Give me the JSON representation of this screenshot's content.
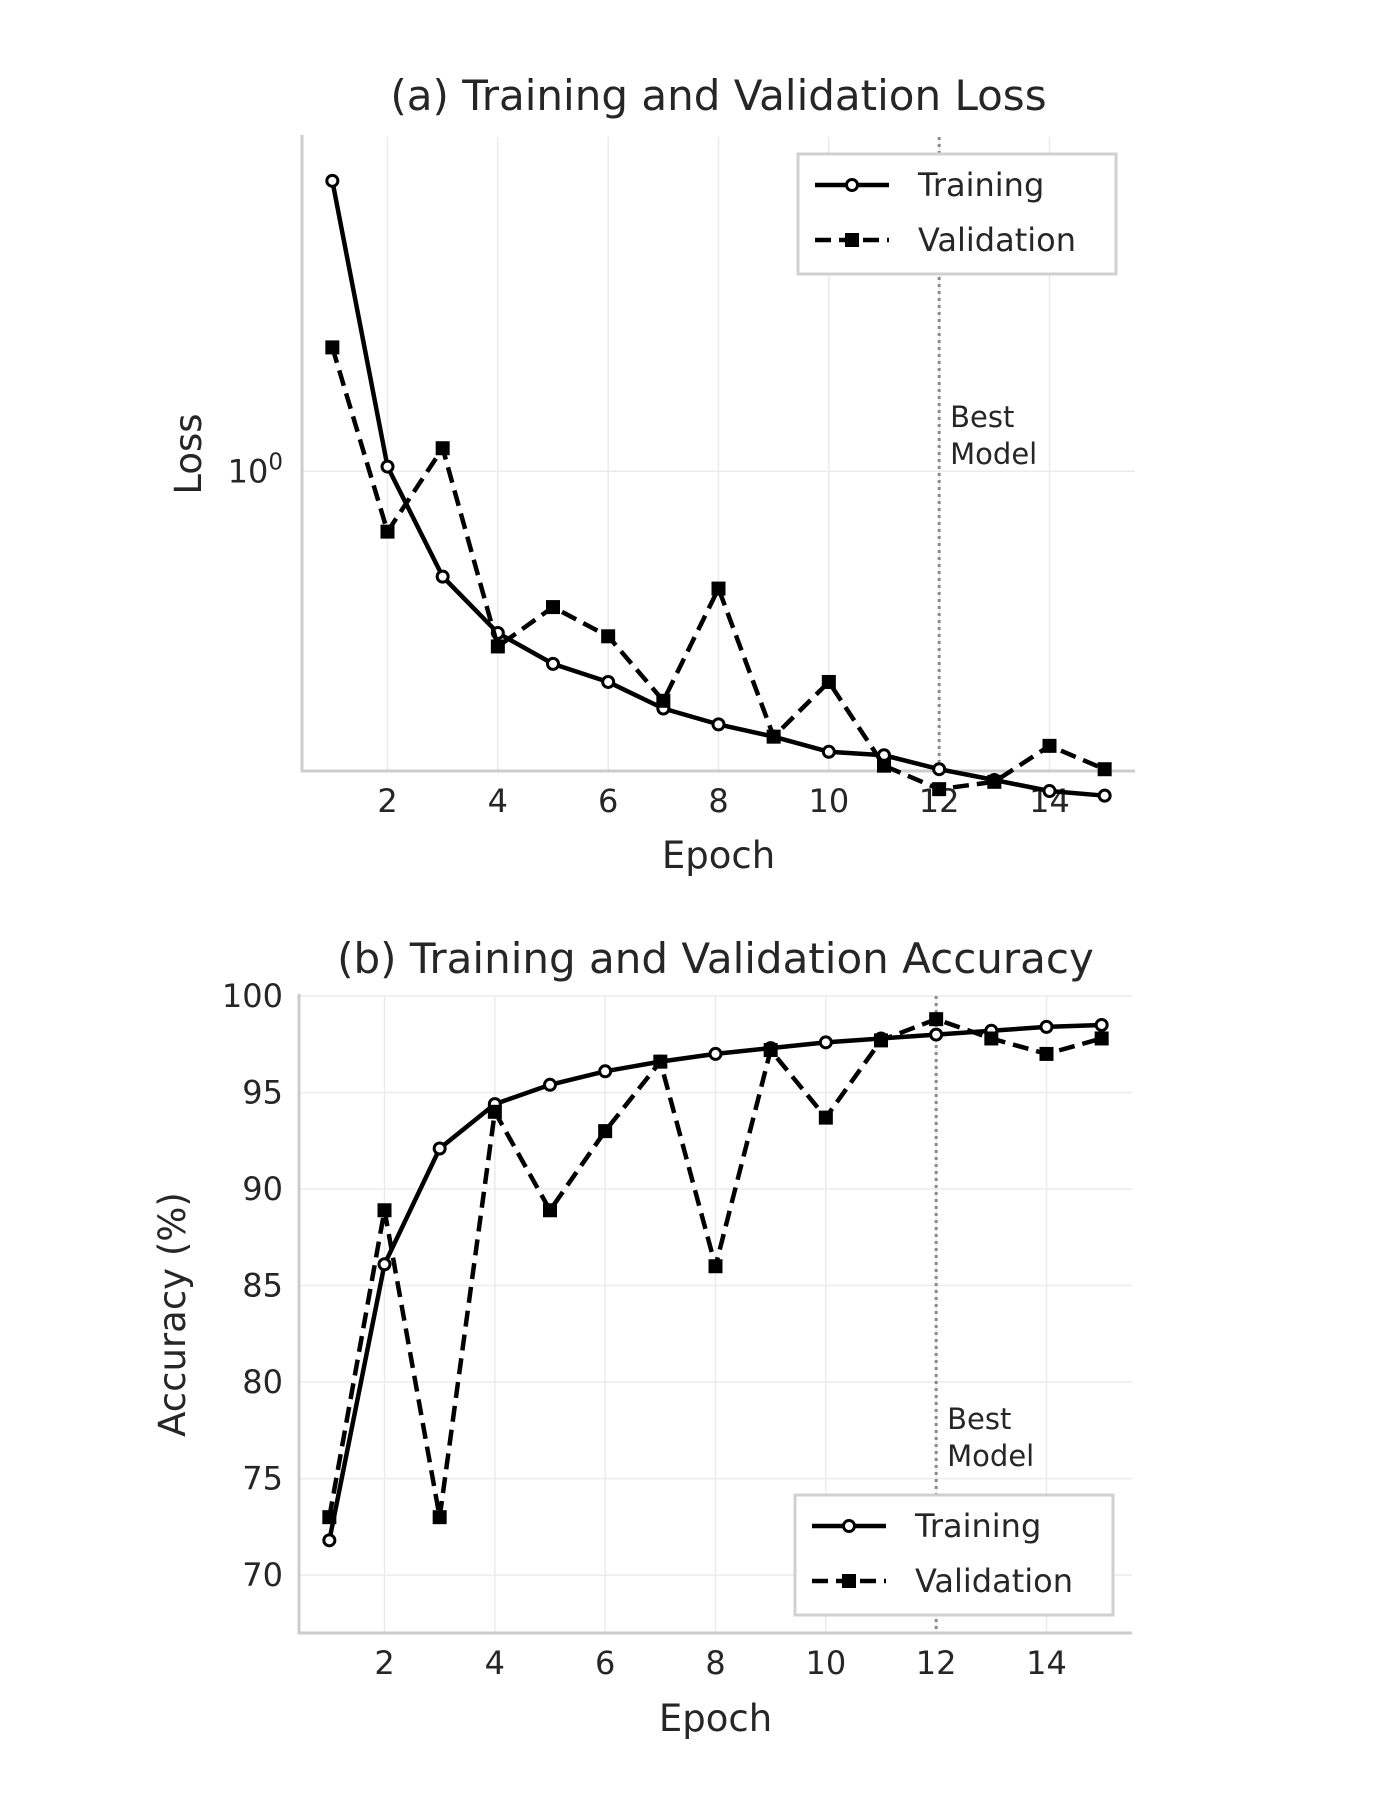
{
  "chart_data": [
    {
      "type": "line",
      "title": "(a) Training and Validation Loss",
      "xlabel": "Epoch",
      "ylabel": "Loss",
      "yscale": "log",
      "xlim": [
        0.45,
        15.55
      ],
      "ylim": [
        0.53,
        2.03
      ],
      "x": [
        1,
        2,
        3,
        4,
        5,
        6,
        7,
        8,
        9,
        10,
        11,
        12,
        13,
        14,
        15
      ],
      "x_ticks": [
        2,
        4,
        6,
        8,
        10,
        12,
        14
      ],
      "y_ticks": [
        {
          "value": 1.0,
          "label": "10",
          "exp": "0"
        }
      ],
      "grid": true,
      "legend_position": "upper right",
      "series": [
        {
          "name": "Training",
          "marker": "circle-open",
          "linestyle": "solid",
          "values": [
            1.85,
            1.01,
            0.8,
            0.71,
            0.665,
            0.64,
            0.605,
            0.585,
            0.57,
            0.552,
            0.548,
            0.532,
            0.52,
            0.508,
            0.503
          ]
        },
        {
          "name": "Validation",
          "marker": "square",
          "linestyle": "dashed",
          "values": [
            1.3,
            0.88,
            1.05,
            0.69,
            0.75,
            0.705,
            0.615,
            0.78,
            0.57,
            0.64,
            0.536,
            0.51,
            0.518,
            0.559,
            0.532
          ]
        }
      ],
      "annotation": {
        "x": 12,
        "lines": [
          "Best",
          "Model"
        ]
      }
    },
    {
      "type": "line",
      "title": "(b) Training and Validation Accuracy",
      "xlabel": "Epoch",
      "ylabel": "Accuracy (%)",
      "xlim": [
        0.45,
        15.55
      ],
      "ylim": [
        67,
        100
      ],
      "x": [
        1,
        2,
        3,
        4,
        5,
        6,
        7,
        8,
        9,
        10,
        11,
        12,
        13,
        14,
        15
      ],
      "x_ticks": [
        2,
        4,
        6,
        8,
        10,
        12,
        14
      ],
      "y_ticks": [
        70,
        75,
        80,
        85,
        90,
        95,
        100
      ],
      "grid": true,
      "legend_position": "lower right",
      "series": [
        {
          "name": "Training",
          "marker": "circle-open",
          "linestyle": "solid",
          "values": [
            71.8,
            86.1,
            92.1,
            94.4,
            95.4,
            96.1,
            96.6,
            97.0,
            97.3,
            97.6,
            97.8,
            98.0,
            98.2,
            98.4,
            98.5
          ]
        },
        {
          "name": "Validation",
          "marker": "square",
          "linestyle": "dashed",
          "values": [
            73.0,
            88.9,
            73.0,
            94.0,
            88.9,
            93.0,
            96.6,
            86.0,
            97.2,
            93.7,
            97.7,
            98.8,
            97.8,
            97.0,
            97.8
          ]
        }
      ],
      "annotation": {
        "x": 12,
        "lines": [
          "Best",
          "Model"
        ]
      }
    }
  ]
}
